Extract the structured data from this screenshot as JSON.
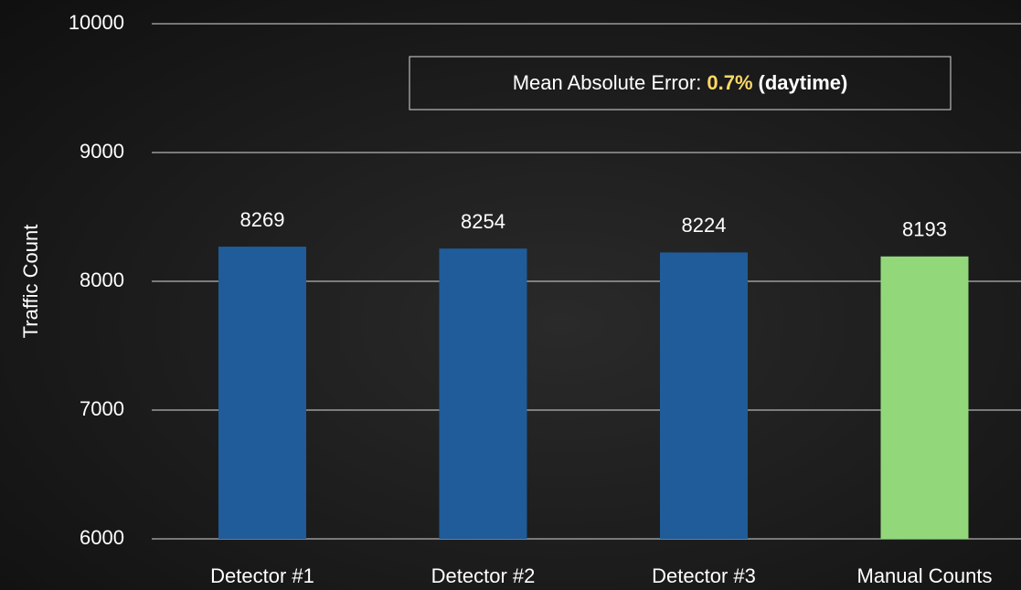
{
  "chart_data": {
    "type": "bar",
    "categories": [
      "Detector #1",
      "Detector #2",
      "Detector #3",
      "Manual Counts"
    ],
    "values": [
      8269,
      8254,
      8224,
      8193
    ],
    "colors": [
      "#1f5c99",
      "#1f5c99",
      "#1f5c99",
      "#92d87a"
    ],
    "ylabel": "Traffic Count",
    "ylim": [
      6000,
      10000
    ],
    "yticks": [
      6000,
      7000,
      8000,
      9000,
      10000
    ],
    "grid": true,
    "annotation": {
      "label": "Mean Absolute Error:",
      "value": "0.7%",
      "note": "(daytime)"
    }
  }
}
